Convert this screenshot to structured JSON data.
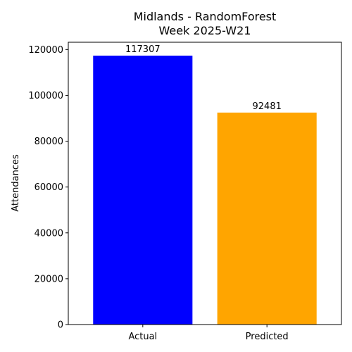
{
  "chart_data": {
    "type": "bar",
    "title_lines": [
      "Midlands - RandomForest",
      "Week 2025-W21"
    ],
    "categories": [
      "Actual",
      "Predicted"
    ],
    "values": [
      117307,
      92481
    ],
    "data_labels": [
      "117307",
      "92481"
    ],
    "colors": [
      "#0000ff",
      "#ffa500"
    ],
    "xlabel": "",
    "ylabel": "Attendances",
    "ylim": [
      0,
      123172
    ],
    "yticks": [
      0,
      20000,
      40000,
      60000,
      80000,
      100000,
      120000
    ],
    "grid": false
  }
}
